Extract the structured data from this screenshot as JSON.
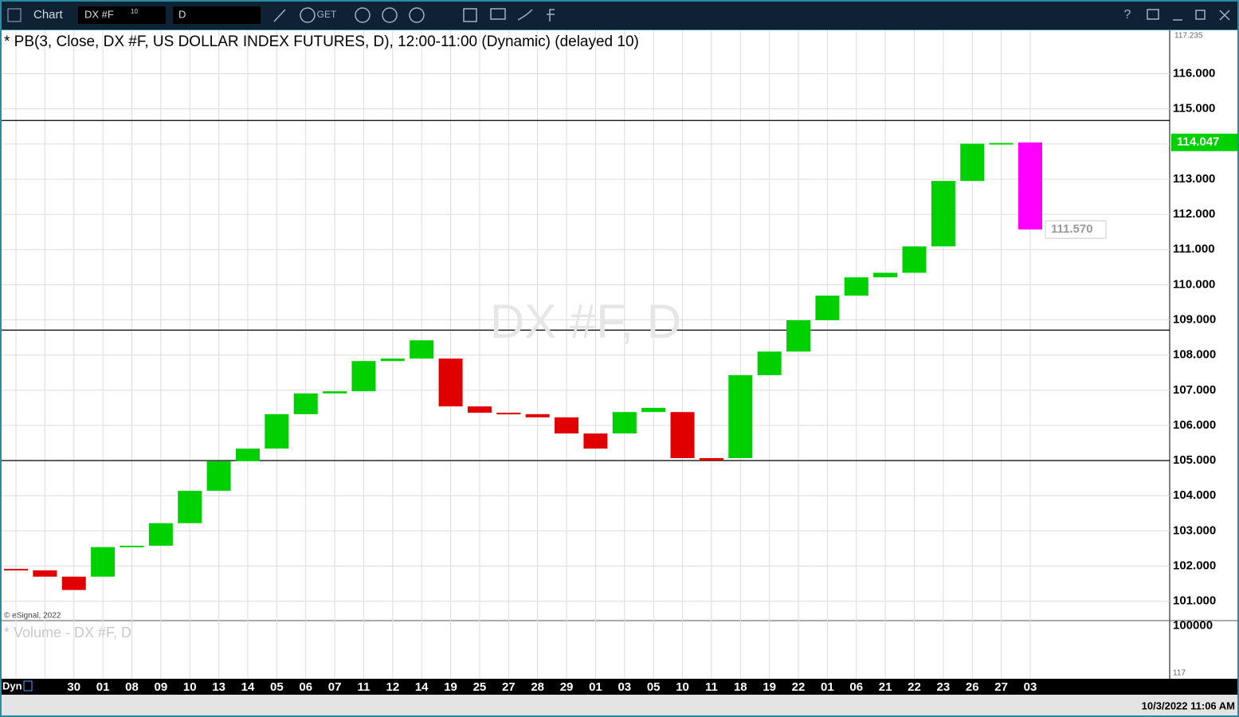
{
  "toolbar": {
    "app": "Chart",
    "symbol": "DX #F",
    "symbol_sup": "10",
    "interval": "D",
    "get": "GET"
  },
  "chart_data": {
    "type": "break",
    "title": "* PB(3, Close, DX #F, US DOLLAR INDEX FUTURES, D), 12:00-11:00 (Dynamic) (delayed 10)",
    "watermark": "DX #F, D",
    "categories": [
      null,
      null,
      "30",
      "01",
      "08",
      "09",
      "10",
      "13",
      "14",
      "05",
      "06",
      "07",
      "11",
      "12",
      "14",
      "19",
      "25",
      "27",
      "28",
      "29",
      "01",
      "03",
      "05",
      "10",
      "11",
      "18",
      "19",
      "22",
      "01",
      "06",
      "21",
      "22",
      "23",
      "26",
      "27",
      "03"
    ],
    "open": [
      101.92,
      101.88,
      101.7,
      101.7,
      102.54,
      102.58,
      103.22,
      104.14,
      104.98,
      105.34,
      106.32,
      106.91,
      106.97,
      107.83,
      107.9,
      107.9,
      106.54,
      106.36,
      106.32,
      106.23,
      105.77,
      105.77,
      106.38,
      106.38,
      105.07,
      105.07,
      107.43,
      108.1,
      108.99,
      109.69,
      110.21,
      110.34,
      111.09,
      112.95,
      114.01,
      114.047
    ],
    "close": [
      101.88,
      101.7,
      101.32,
      102.54,
      102.58,
      103.22,
      104.14,
      104.98,
      105.34,
      106.32,
      106.91,
      106.97,
      107.83,
      107.9,
      108.42,
      106.54,
      106.36,
      106.32,
      106.23,
      105.77,
      105.34,
      106.38,
      106.5,
      105.07,
      105.0,
      107.43,
      108.1,
      108.99,
      109.69,
      110.21,
      110.34,
      111.09,
      112.95,
      114.01,
      114.03,
      111.57
    ],
    "up_color": "#00d000",
    "down_color": "#e00000",
    "last_color": "#ff00ff",
    "ylim": [
      100.45,
      117.235
    ],
    "yticks": [
      {
        "value": 101,
        "label": "101.000"
      },
      {
        "value": 102,
        "label": "102.000"
      },
      {
        "value": 103,
        "label": "103.000"
      },
      {
        "value": 104,
        "label": "104.000"
      },
      {
        "value": 105,
        "label": "105.000"
      },
      {
        "value": 106,
        "label": "106.000"
      },
      {
        "value": 107,
        "label": "107.000"
      },
      {
        "value": 108,
        "label": "108.000"
      },
      {
        "value": 109,
        "label": "109.000"
      },
      {
        "value": 110,
        "label": "110.000"
      },
      {
        "value": 111,
        "label": "111.000"
      },
      {
        "value": 112,
        "label": "112.000"
      },
      {
        "value": 113,
        "label": "113.000"
      },
      {
        "value": 114,
        "label": "114.000"
      },
      {
        "value": 115,
        "label": "115.000"
      },
      {
        "value": 116,
        "label": "116.000"
      }
    ],
    "axis_top": 117.235,
    "hlines": [
      114.67,
      108.71,
      105.0
    ],
    "last_value": 114.047,
    "low_marker": {
      "value": 111.57,
      "label": "111.570"
    },
    "grid": true,
    "volume_title": "* Volume - DX #F, D",
    "volume_ylim": [
      0,
      110000
    ],
    "volume_yticks": [
      100000,
      117
    ]
  },
  "footer": {
    "mode": "Dyn",
    "copyright": "© eSignal, 2022",
    "timestamp": "10/3/2022 11:06 AM"
  }
}
